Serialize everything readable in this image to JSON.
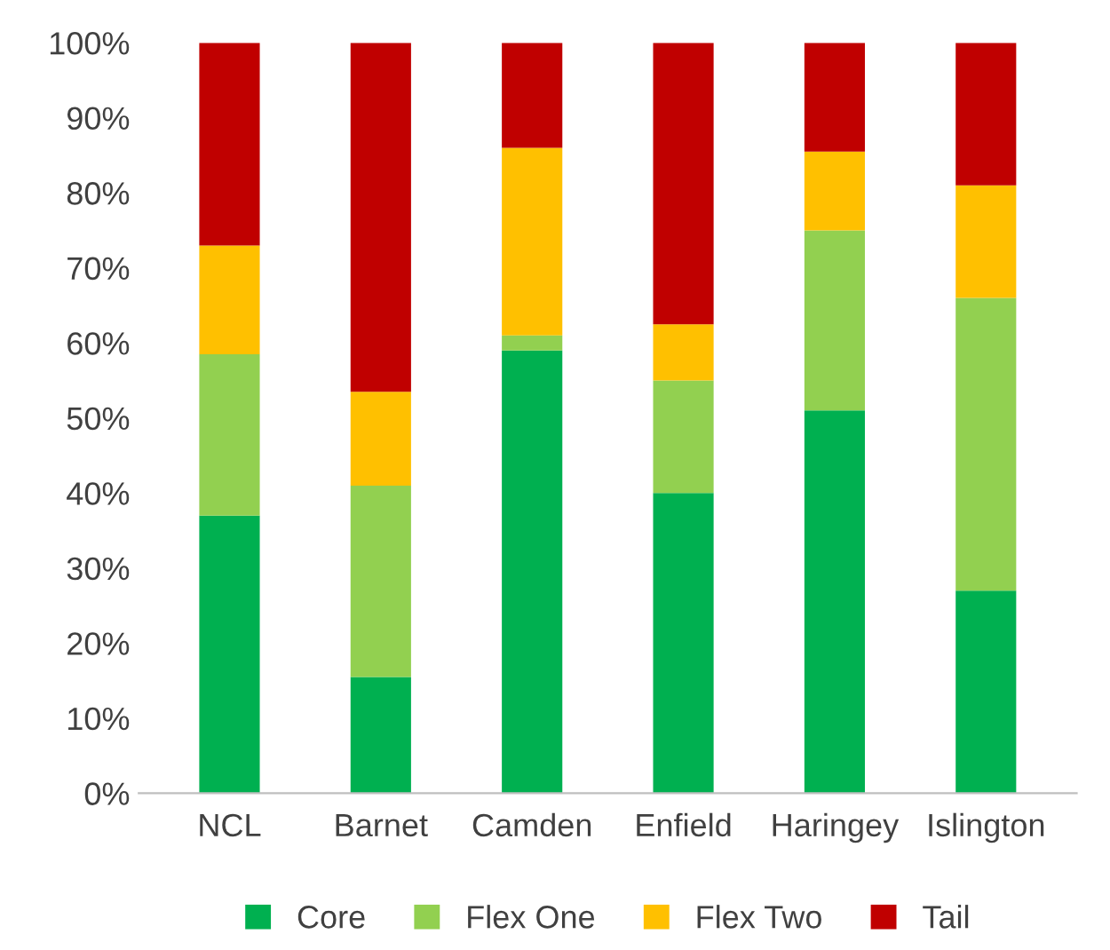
{
  "chart_data": {
    "type": "bar",
    "stacked": true,
    "categories": [
      "NCL",
      "Barnet",
      "Camden",
      "Enfield",
      "Haringey",
      "Islington"
    ],
    "series": [
      {
        "name": "Core",
        "color": "#00b050",
        "values": [
          37,
          15.5,
          59,
          40,
          51,
          27
        ]
      },
      {
        "name": "Flex One",
        "color": "#92d050",
        "values": [
          21.5,
          25.5,
          2,
          15,
          24,
          39
        ]
      },
      {
        "name": "Flex Two",
        "color": "#ffc000",
        "values": [
          14.5,
          12.5,
          25,
          7.5,
          10.5,
          15
        ]
      },
      {
        "name": "Tail",
        "color": "#c00000",
        "values": [
          27,
          46.5,
          14,
          37.5,
          14.5,
          19
        ]
      }
    ],
    "ylim": [
      0,
      100
    ],
    "yticks": [
      {
        "value": 0,
        "label": "0%"
      },
      {
        "value": 10,
        "label": "10%"
      },
      {
        "value": 20,
        "label": "20%"
      },
      {
        "value": 30,
        "label": "30%"
      },
      {
        "value": 40,
        "label": "40%"
      },
      {
        "value": 50,
        "label": "50%"
      },
      {
        "value": 60,
        "label": "60%"
      },
      {
        "value": 70,
        "label": "70%"
      },
      {
        "value": 80,
        "label": "80%"
      },
      {
        "value": 90,
        "label": "90%"
      },
      {
        "value": 100,
        "label": "100%"
      }
    ],
    "grid": false,
    "legend": "bottom"
  }
}
